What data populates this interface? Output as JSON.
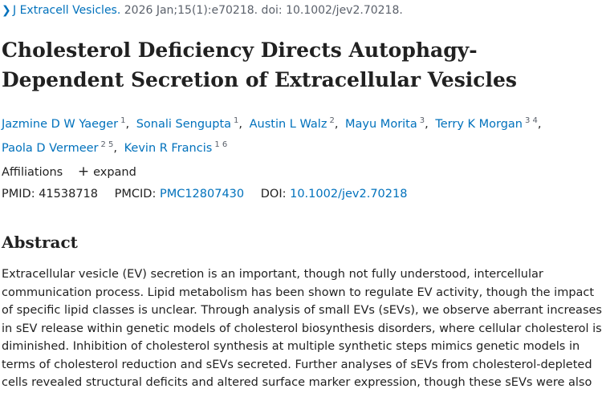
{
  "citation": {
    "journal": "J Extracell Vesicles.",
    "details": "2026 Jan;15(1):e70218. doi: 10.1002/jev2.70218."
  },
  "article": {
    "title": "Cholesterol Deficiency Directs Autophagy-Dependent Secretion of Extracellular Vesicles"
  },
  "authors": [
    {
      "name": "Jazmine D W Yaeger",
      "aff": "1"
    },
    {
      "name": "Sonali Sengupta",
      "aff": "1"
    },
    {
      "name": "Austin L Walz",
      "aff": "2"
    },
    {
      "name": "Mayu Morita",
      "aff": "3"
    },
    {
      "name": "Terry K Morgan",
      "aff": "3 4"
    },
    {
      "name": "Paola D Vermeer",
      "aff": "2 5"
    },
    {
      "name": "Kevin R Francis",
      "aff": "1 6"
    }
  ],
  "affiliations": {
    "label": "Affiliations",
    "expand_icon": "plus-icon",
    "expand_label": "expand"
  },
  "identifiers": {
    "pmid_label": "PMID:",
    "pmid": "41538718",
    "pmcid_label": "PMCID:",
    "pmcid": "PMC12807430",
    "doi_label": "DOI:",
    "doi": "10.1002/jev2.70218"
  },
  "abstract": {
    "heading": "Abstract",
    "text": "Extracellular vesicle (EV) secretion is an important, though not fully understood, intercellular communication process. Lipid metabolism has been shown to regulate EV activity, though the impact of specific lipid classes is unclear. Through analysis of small EVs (sEVs), we observe aberrant increases in sEV release within genetic models of cholesterol biosynthesis disorders, where cellular cholesterol is diminished. Inhibition of cholesterol synthesis at multiple synthetic steps mimics genetic models in terms of cholesterol reduction and sEVs secreted. Further analyses of sEVs from cholesterol-depleted cells revealed structural deficits and altered surface marker expression, though these sEVs were also"
  }
}
